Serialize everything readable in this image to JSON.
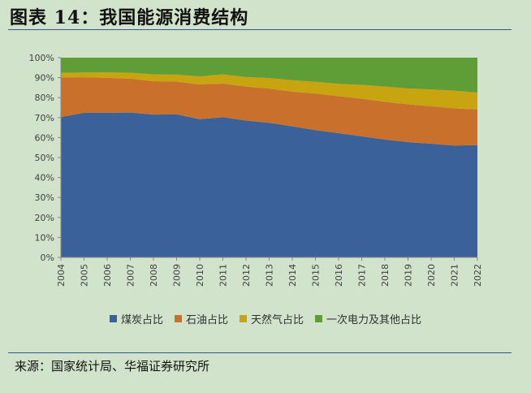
{
  "header": {
    "title": "图表 14：我国能源消费结构"
  },
  "footer": {
    "source": "来源：国家统计局、华福证券研究所"
  },
  "chart_data": {
    "type": "area",
    "stacked": true,
    "x": [
      "2004",
      "2005",
      "2006",
      "2007",
      "2008",
      "2009",
      "2010",
      "2011",
      "2012",
      "2013",
      "2014",
      "2015",
      "2016",
      "2017",
      "2018",
      "2019",
      "2020",
      "2021",
      "2022"
    ],
    "yticks": [
      "0%",
      "10%",
      "20%",
      "30%",
      "40%",
      "50%",
      "60%",
      "70%",
      "80%",
      "90%",
      "100%"
    ],
    "ylim": [
      0,
      100
    ],
    "legend_position": "bottom",
    "grid": false,
    "series": [
      {
        "name": "煤炭占比",
        "color": "#3a6199",
        "values": [
          70.2,
          72.4,
          72.4,
          72.5,
          71.5,
          71.6,
          69.2,
          70.2,
          68.5,
          67.4,
          65.6,
          63.7,
          62.2,
          60.6,
          59.0,
          57.7,
          56.9,
          56.0,
          56.2
        ]
      },
      {
        "name": "石油占比",
        "color": "#c8702c",
        "values": [
          19.9,
          17.8,
          17.5,
          17.0,
          16.7,
          16.4,
          17.4,
          16.8,
          17.0,
          17.1,
          17.4,
          18.3,
          18.5,
          18.8,
          18.9,
          18.9,
          18.8,
          18.6,
          17.9
        ]
      },
      {
        "name": "天然气占比",
        "color": "#c8a411",
        "values": [
          2.3,
          2.4,
          2.7,
          3.0,
          3.4,
          3.5,
          4.0,
          4.6,
          4.8,
          5.3,
          5.7,
          5.9,
          6.2,
          7.0,
          7.6,
          8.0,
          8.4,
          8.9,
          8.4
        ]
      },
      {
        "name": "一次电力及其他占比",
        "color": "#5f9e36",
        "values": [
          7.6,
          7.4,
          7.4,
          7.5,
          8.4,
          8.5,
          9.4,
          8.4,
          9.7,
          10.2,
          11.3,
          12.1,
          13.1,
          13.6,
          14.5,
          15.4,
          15.9,
          16.5,
          17.5
        ]
      }
    ]
  }
}
